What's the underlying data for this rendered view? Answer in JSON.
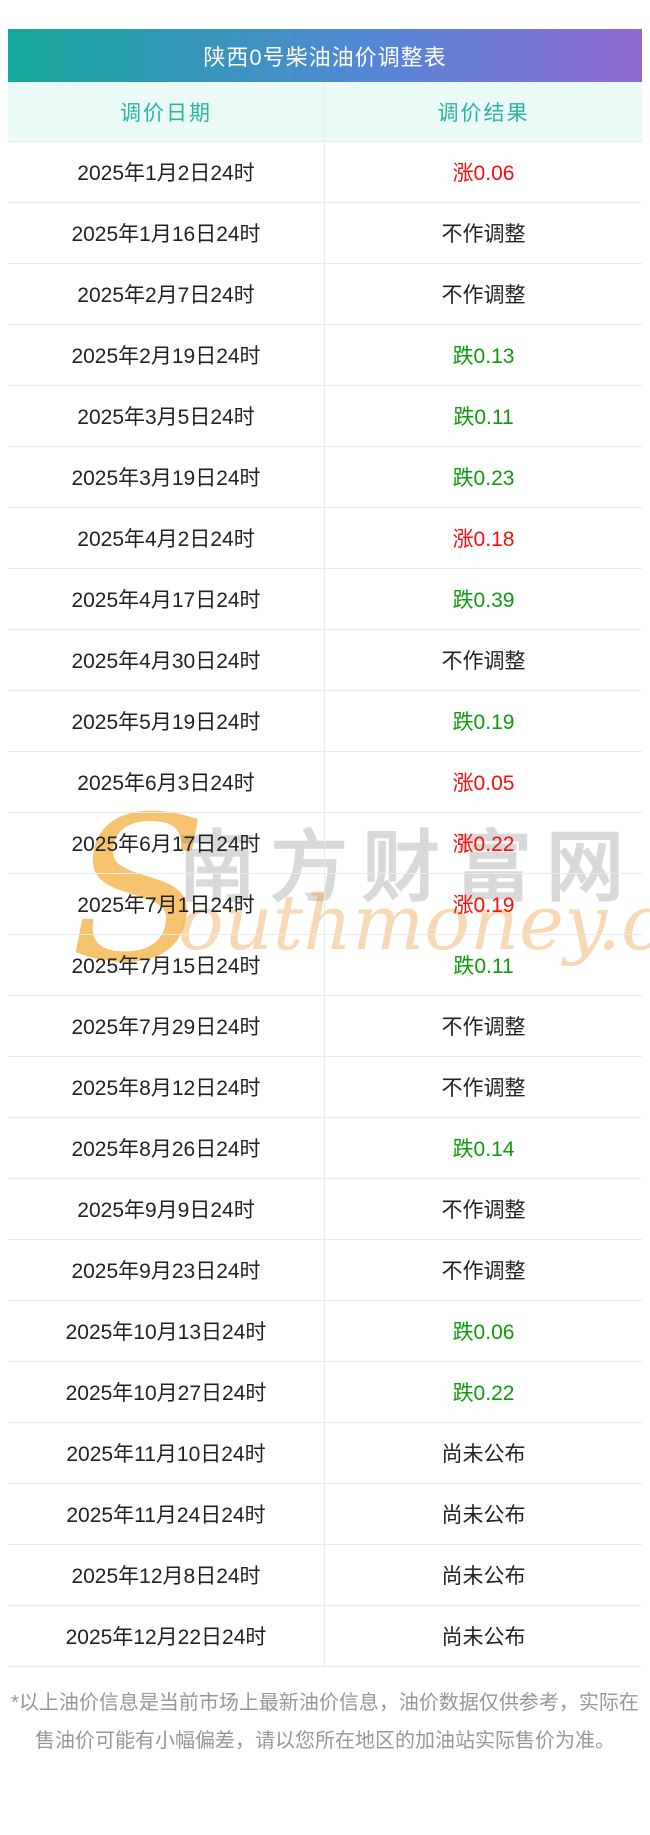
{
  "table": {
    "title": "陕西0号柴油油价调整表",
    "columns": {
      "date": "调价日期",
      "result": "调价结果"
    },
    "rows": [
      {
        "date": "2025年1月2日24时",
        "result": "涨0.06",
        "trend": "up"
      },
      {
        "date": "2025年1月16日24时",
        "result": "不作调整",
        "trend": "none"
      },
      {
        "date": "2025年2月7日24时",
        "result": "不作调整",
        "trend": "none"
      },
      {
        "date": "2025年2月19日24时",
        "result": "跌0.13",
        "trend": "down"
      },
      {
        "date": "2025年3月5日24时",
        "result": "跌0.11",
        "trend": "down"
      },
      {
        "date": "2025年3月19日24时",
        "result": "跌0.23",
        "trend": "down"
      },
      {
        "date": "2025年4月2日24时",
        "result": "涨0.18",
        "trend": "up"
      },
      {
        "date": "2025年4月17日24时",
        "result": "跌0.39",
        "trend": "down"
      },
      {
        "date": "2025年4月30日24时",
        "result": "不作调整",
        "trend": "none"
      },
      {
        "date": "2025年5月19日24时",
        "result": "跌0.19",
        "trend": "down"
      },
      {
        "date": "2025年6月3日24时",
        "result": "涨0.05",
        "trend": "up"
      },
      {
        "date": "2025年6月17日24时",
        "result": "涨0.22",
        "trend": "up"
      },
      {
        "date": "2025年7月1日24时",
        "result": "涨0.19",
        "trend": "up"
      },
      {
        "date": "2025年7月15日24时",
        "result": "跌0.11",
        "trend": "down"
      },
      {
        "date": "2025年7月29日24时",
        "result": "不作调整",
        "trend": "none"
      },
      {
        "date": "2025年8月12日24时",
        "result": "不作调整",
        "trend": "none"
      },
      {
        "date": "2025年8月26日24时",
        "result": "跌0.14",
        "trend": "down"
      },
      {
        "date": "2025年9月9日24时",
        "result": "不作调整",
        "trend": "none"
      },
      {
        "date": "2025年9月23日24时",
        "result": "不作调整",
        "trend": "none"
      },
      {
        "date": "2025年10月13日24时",
        "result": "跌0.06",
        "trend": "down"
      },
      {
        "date": "2025年10月27日24时",
        "result": "跌0.22",
        "trend": "down"
      },
      {
        "date": "2025年11月10日24时",
        "result": "尚未公布",
        "trend": "pending"
      },
      {
        "date": "2025年11月24日24时",
        "result": "尚未公布",
        "trend": "pending"
      },
      {
        "date": "2025年12月8日24时",
        "result": "尚未公布",
        "trend": "pending"
      },
      {
        "date": "2025年12月22日24时",
        "result": "尚未公布",
        "trend": "pending"
      }
    ]
  },
  "watermark": {
    "logo_letter": "S",
    "site_name_cn": "南方财富网",
    "site_name_en": "outhmoney.com"
  },
  "footer": {
    "note": "*以上油价信息是当前市场上最新油价信息，油价数据仅供参考，实际在售油价可能有小幅偏差，请以您所在地区的加油站实际售价为准。"
  },
  "colors": {
    "grad-left": "#14a89b",
    "grad-mid": "#5587d6",
    "grad-right": "#9069d3",
    "head-bg": "#eafaf7",
    "head-fg": "#2cb3a4",
    "neutral": "#222222",
    "up": "#fb0d0c",
    "down": "#0d9b0d",
    "line": "#e7ebef",
    "note-fg": "#979797"
  }
}
